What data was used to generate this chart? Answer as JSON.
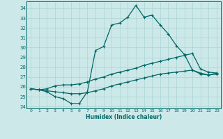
{
  "background_color": "#cce8e8",
  "grid_color": "#aad4d4",
  "line_color": "#006666",
  "xlabel": "Humidex (Indice chaleur)",
  "ylim": [
    23.8,
    34.7
  ],
  "xlim": [
    -0.5,
    23.5
  ],
  "yticks": [
    24,
    25,
    26,
    27,
    28,
    29,
    30,
    31,
    32,
    33,
    34
  ],
  "xticks": [
    0,
    1,
    2,
    3,
    4,
    5,
    6,
    7,
    8,
    9,
    10,
    11,
    12,
    13,
    14,
    15,
    16,
    17,
    18,
    19,
    20,
    21,
    22,
    23
  ],
  "series1_x": [
    0,
    1,
    2,
    3,
    4,
    5,
    6,
    7,
    8,
    9,
    10,
    11,
    12,
    13,
    14,
    15,
    16,
    17,
    18,
    19,
    20,
    21,
    22,
    23
  ],
  "series1_y": [
    25.8,
    25.7,
    25.5,
    25.0,
    24.8,
    24.3,
    24.3,
    25.5,
    29.7,
    30.1,
    32.3,
    32.5,
    33.1,
    34.3,
    33.1,
    33.3,
    32.3,
    31.4,
    30.2,
    29.3,
    27.7,
    27.3,
    27.2,
    27.4
  ],
  "series2_x": [
    0,
    1,
    2,
    3,
    4,
    5,
    6,
    7,
    8,
    9,
    10,
    11,
    12,
    13,
    14,
    15,
    16,
    17,
    18,
    19,
    20,
    21,
    22,
    23
  ],
  "series2_y": [
    25.8,
    25.7,
    25.8,
    26.1,
    26.2,
    26.2,
    26.3,
    26.5,
    26.8,
    27.0,
    27.3,
    27.5,
    27.7,
    27.9,
    28.2,
    28.4,
    28.6,
    28.8,
    29.0,
    29.2,
    29.4,
    27.8,
    27.5,
    27.4
  ],
  "series3_x": [
    0,
    1,
    2,
    3,
    4,
    5,
    6,
    7,
    8,
    9,
    10,
    11,
    12,
    13,
    14,
    15,
    16,
    17,
    18,
    19,
    20,
    21,
    22,
    23
  ],
  "series3_y": [
    25.8,
    25.7,
    25.6,
    25.5,
    25.4,
    25.3,
    25.3,
    25.4,
    25.6,
    25.8,
    26.1,
    26.3,
    26.5,
    26.7,
    26.9,
    27.1,
    27.3,
    27.4,
    27.5,
    27.6,
    27.7,
    27.4,
    27.2,
    27.3
  ]
}
